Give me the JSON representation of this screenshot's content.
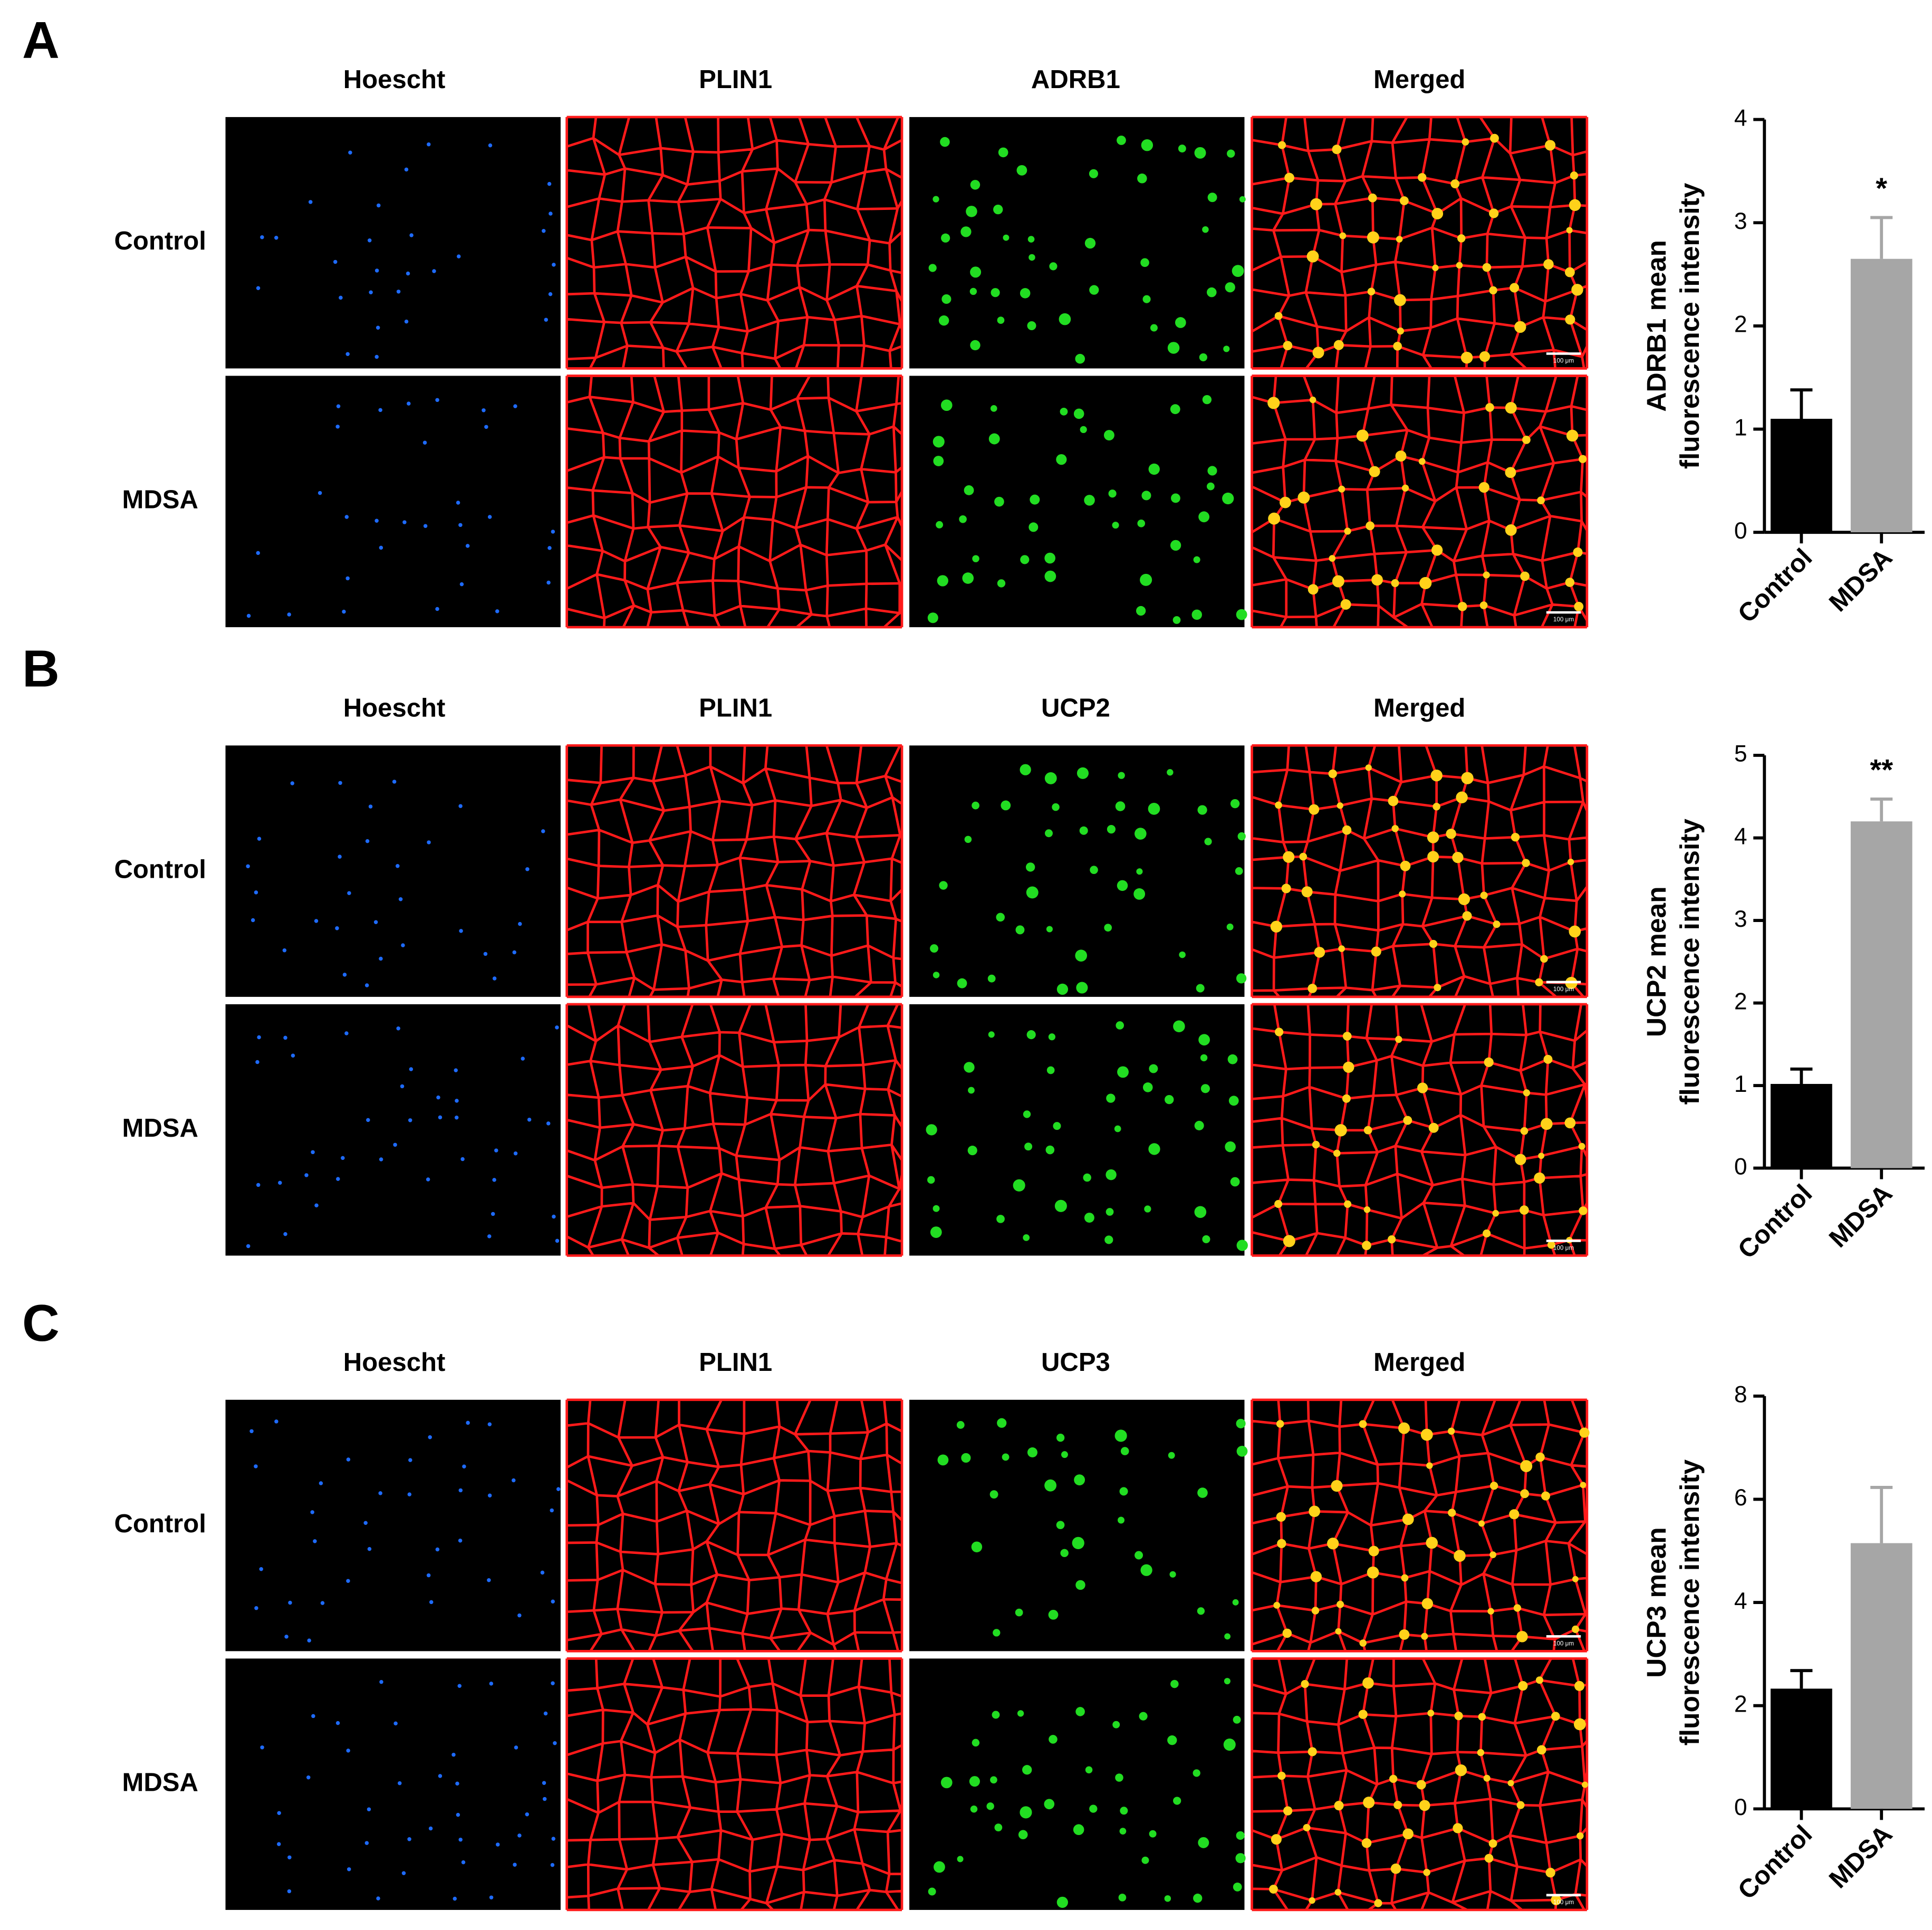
{
  "panels": [
    {
      "label": "A",
      "columns": [
        "Hoescht",
        "PLIN1",
        "ADRB1",
        "Merged"
      ],
      "rows": [
        "Control",
        "MDSA"
      ],
      "scale_bar": "100 μm"
    },
    {
      "label": "B",
      "columns": [
        "Hoescht",
        "PLIN1",
        "UCP2",
        "Merged"
      ],
      "rows": [
        "Control",
        "MDSA"
      ],
      "scale_bar": "100 μm"
    },
    {
      "label": "C",
      "columns": [
        "Hoescht",
        "PLIN1",
        "UCP3",
        "Merged"
      ],
      "rows": [
        "Control",
        "MDSA"
      ],
      "scale_bar": "100 μm"
    }
  ],
  "chart_data": [
    {
      "type": "bar",
      "ylabel": [
        "ADRB1 mean",
        "fluorescence intensity"
      ],
      "categories": [
        "Control",
        "MDSA"
      ],
      "values": [
        1.1,
        2.65
      ],
      "errors": [
        0.28,
        0.4
      ],
      "colors": [
        "#000000",
        "#a6a6a6"
      ],
      "annotation": "*",
      "ylim": [
        0,
        4
      ],
      "yticks": [
        0,
        1,
        2,
        3,
        4
      ]
    },
    {
      "type": "bar",
      "ylabel": [
        "UCP2 mean",
        "fluorescence intensity"
      ],
      "categories": [
        "Control",
        "MDSA"
      ],
      "values": [
        1.02,
        4.2
      ],
      "errors": [
        0.18,
        0.27
      ],
      "colors": [
        "#000000",
        "#a6a6a6"
      ],
      "annotation": "**",
      "ylim": [
        0,
        5
      ],
      "yticks": [
        0,
        1,
        2,
        3,
        4,
        5
      ]
    },
    {
      "type": "bar",
      "ylabel": [
        "UCP3 mean",
        "fluorescence intensity"
      ],
      "categories": [
        "Control",
        "MDSA"
      ],
      "values": [
        2.33,
        5.15
      ],
      "errors": [
        0.35,
        1.08
      ],
      "colors": [
        "#000000",
        "#a6a6a6"
      ],
      "ylim": [
        0,
        8
      ],
      "yticks": [
        0,
        2,
        4,
        6,
        8
      ]
    }
  ]
}
